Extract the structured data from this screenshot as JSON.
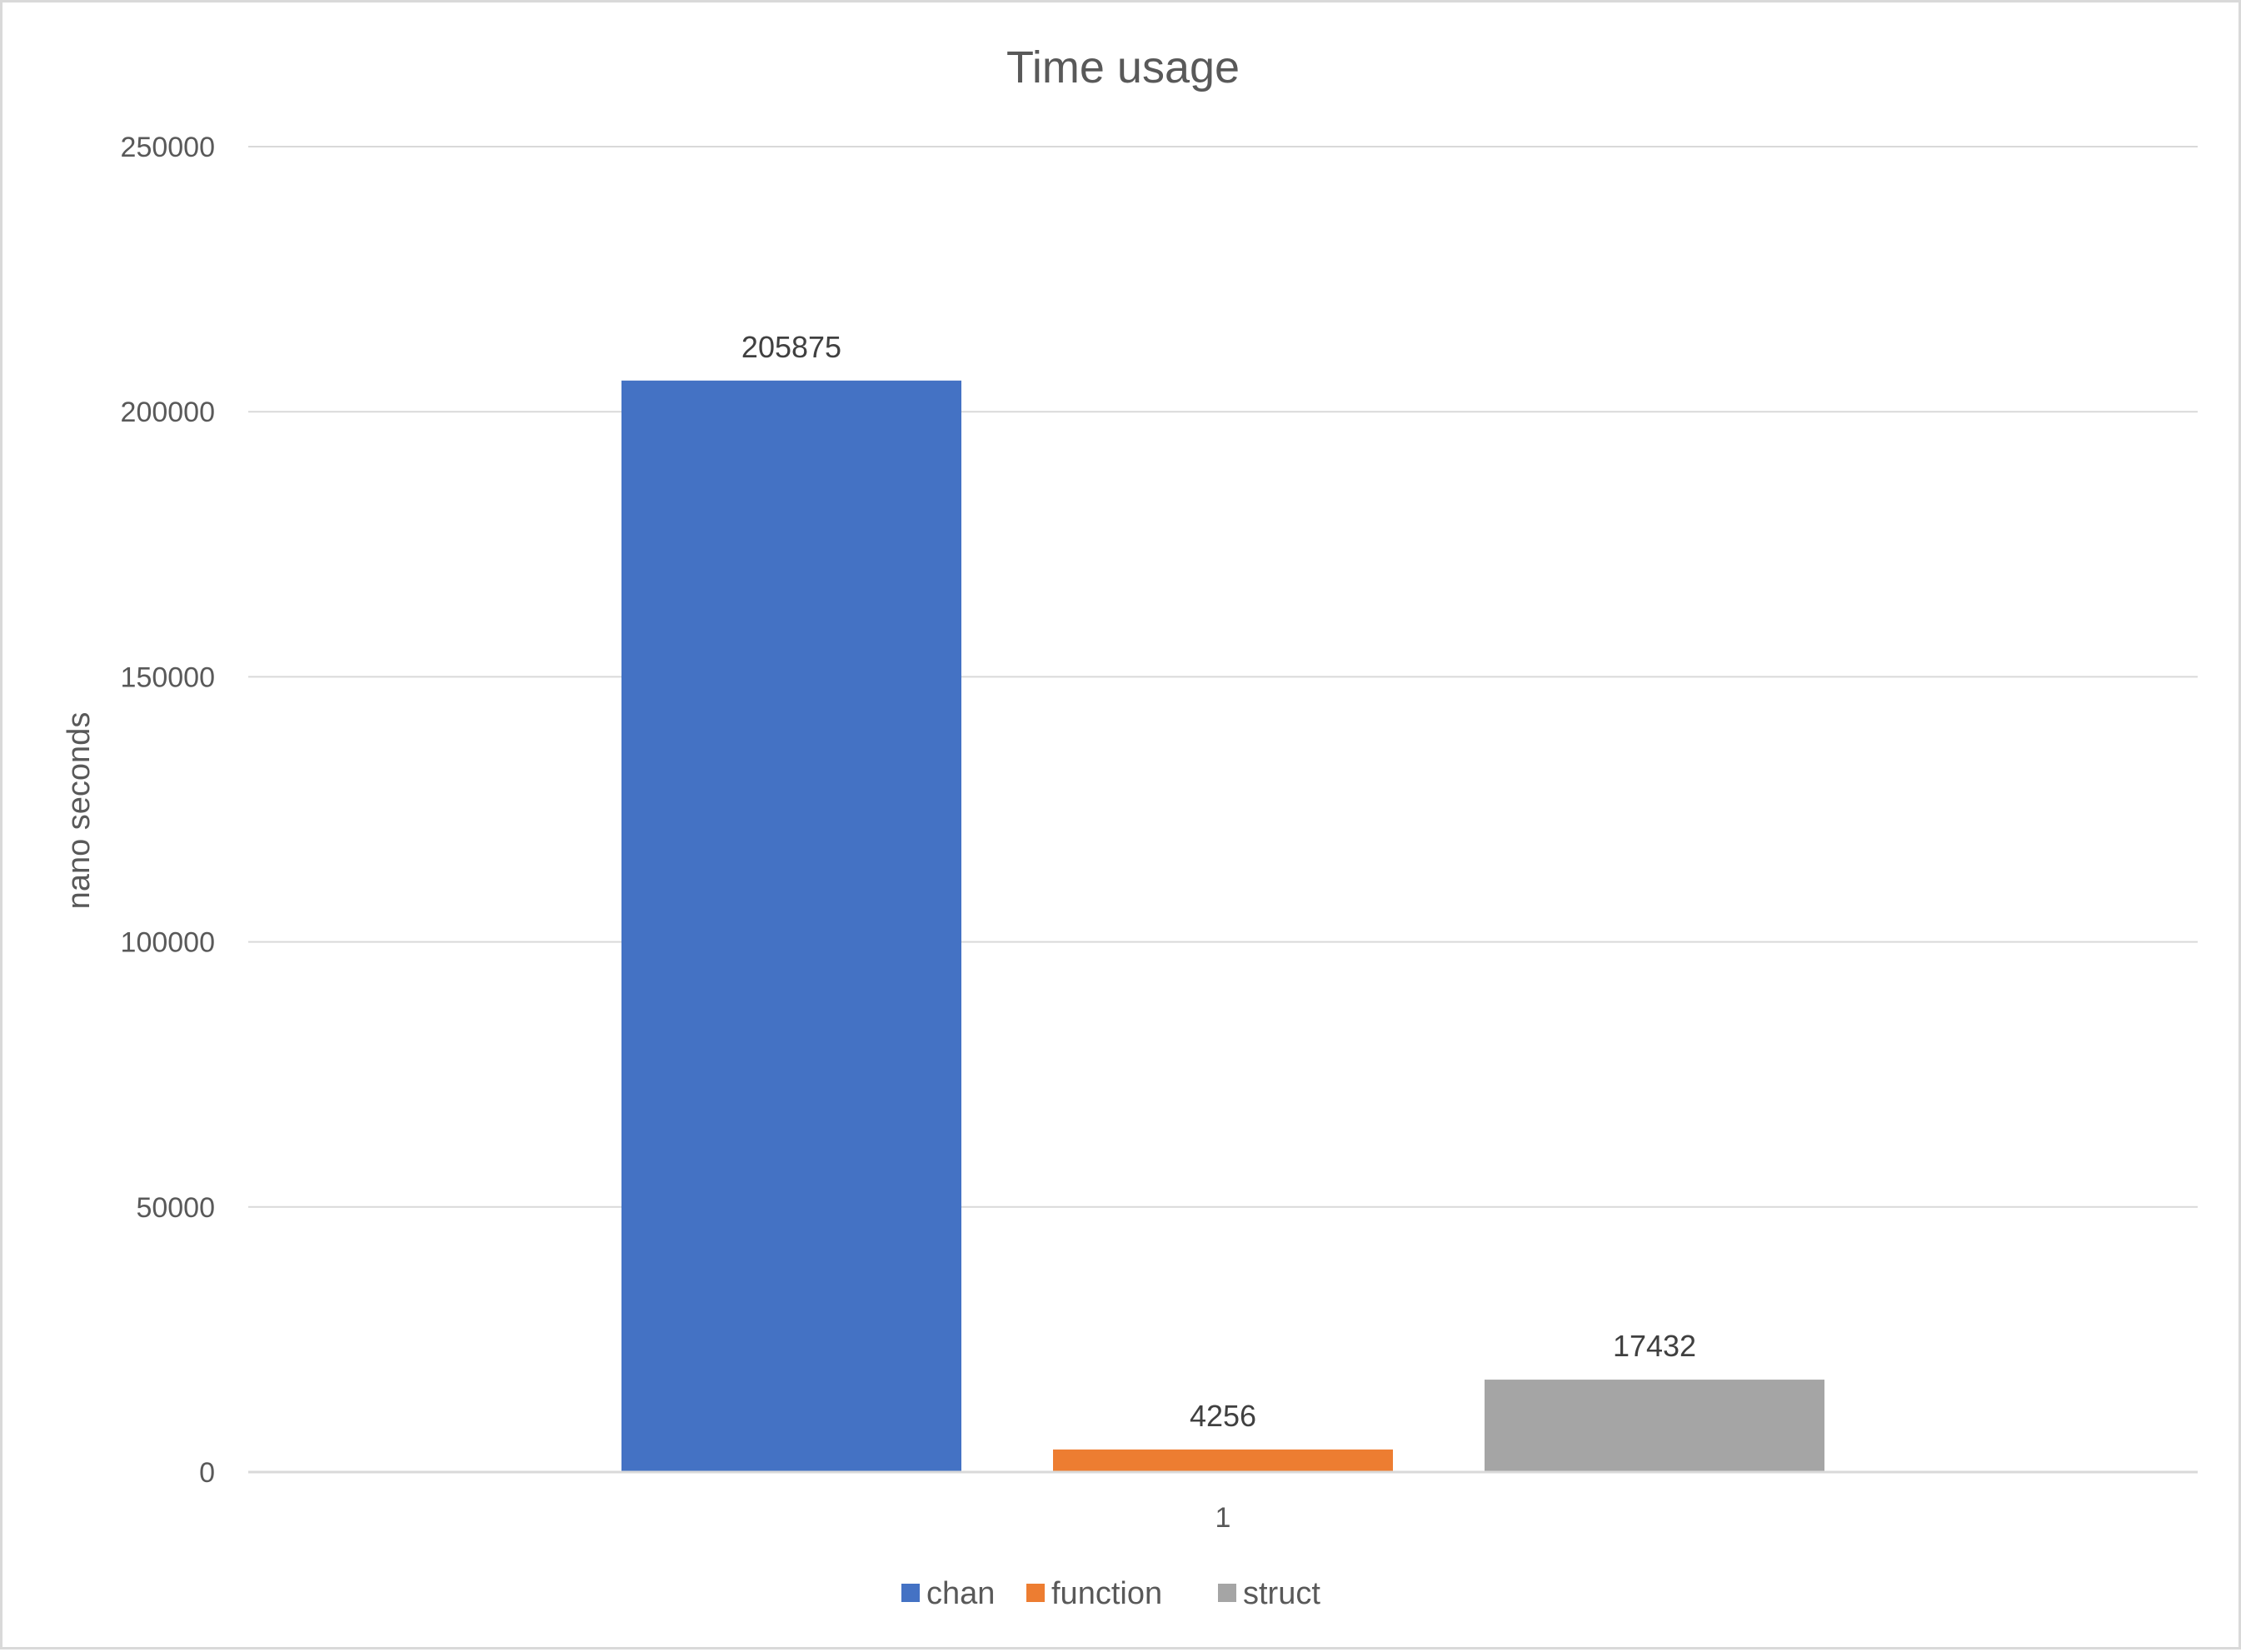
{
  "chart_data": {
    "type": "bar",
    "title": "Time usage",
    "xlabel": "",
    "ylabel": "nano seconds",
    "categories": [
      "1"
    ],
    "series": [
      {
        "name": "chan",
        "values": [
          205875
        ],
        "color": "#4472c4"
      },
      {
        "name": "function",
        "values": [
          4256
        ],
        "color": "#ed7d31"
      },
      {
        "name": "struct",
        "values": [
          17432
        ],
        "color": "#a5a5a5"
      }
    ],
    "ylim": [
      0,
      250000
    ],
    "yticks": [
      0,
      50000,
      100000,
      150000,
      200000,
      250000
    ],
    "data_labels": true,
    "grid": true,
    "legend_position": "bottom"
  }
}
